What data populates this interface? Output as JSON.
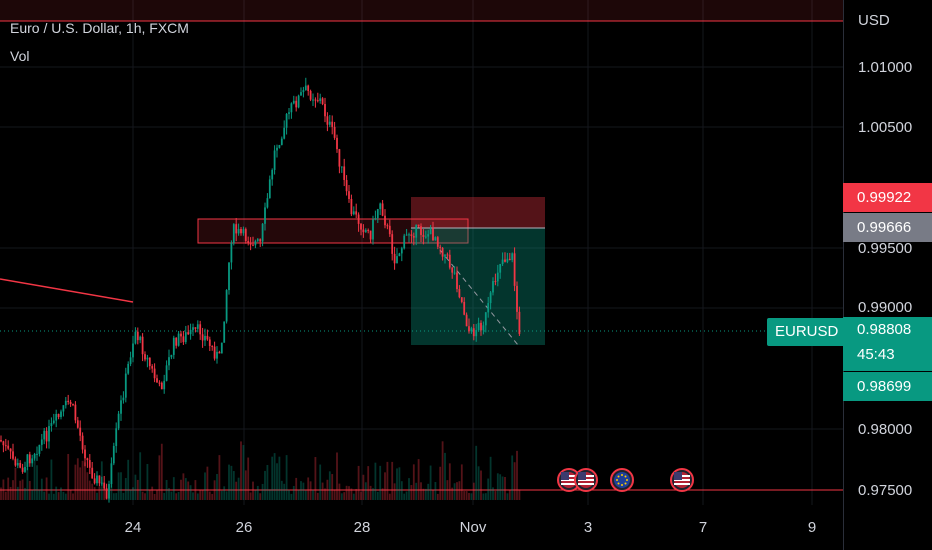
{
  "header": {
    "symbol_line": "Euro / U.S. Dollar, 1h, FXCM",
    "volume_label": "Vol"
  },
  "axis": {
    "currency": "USD",
    "price_ticks": [
      "1.01000",
      "1.00500",
      "0.99500",
      "0.99000",
      "0.98000",
      "0.97500"
    ],
    "time_ticks": [
      "24",
      "26",
      "28",
      "Nov",
      "3",
      "7",
      "9"
    ]
  },
  "badges": {
    "stop_price": "0.99922",
    "entry_price": "0.99666",
    "symbol": "EURUSD",
    "last_price": "0.98808",
    "countdown": "45:43",
    "target_price": "0.98699"
  },
  "events": {
    "icons": [
      "us-flag-icon",
      "us-flag-icon",
      "eu-flag-icon",
      "us-flag-icon"
    ]
  },
  "colors": {
    "bull": "#089981",
    "bear": "#f23645",
    "stop_zone": "#f23645",
    "target_zone": "#089981",
    "background": "#000000"
  }
}
